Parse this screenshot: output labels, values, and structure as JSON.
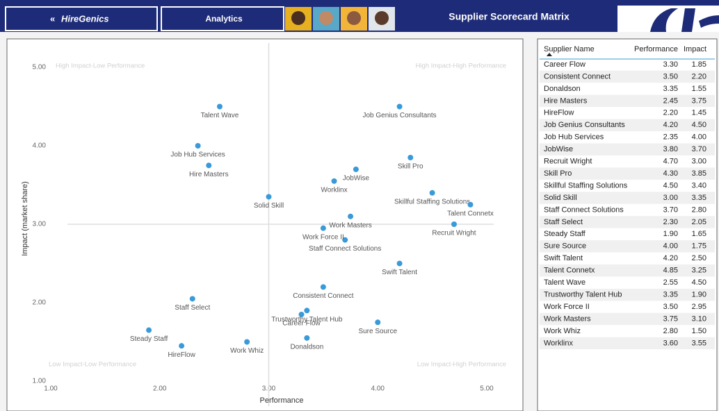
{
  "header": {
    "logo": "HireGenics",
    "nav": "Analytics",
    "title": "Supplier Scorecard Matrix"
  },
  "chart_data": {
    "type": "scatter",
    "x_label": "Performance",
    "y_label": "Impact (market share)",
    "color": "#3a9ad9",
    "xlim": [
      1,
      5
    ],
    "ylim": [
      1,
      5
    ],
    "xticks": [
      {
        "value": 1,
        "label": "1.00"
      },
      {
        "value": 2,
        "label": "2.00"
      },
      {
        "value": 3,
        "label": "3.00"
      },
      {
        "value": 4,
        "label": "4.00"
      },
      {
        "value": 5,
        "label": "5.00"
      }
    ],
    "yticks": [
      {
        "value": 1,
        "label": "1.00"
      },
      {
        "value": 2,
        "label": "2.00"
      },
      {
        "value": 3,
        "label": "3.00"
      },
      {
        "value": 4,
        "label": "4.00"
      },
      {
        "value": 5,
        "label": "5.00"
      }
    ],
    "reference_lines": {
      "x": 3,
      "y": 3
    },
    "annotations": [
      "High Impact-Low Performance",
      "High Impact-High Performance",
      "Low Impact-Low Performance",
      "Low Impact-High Performance"
    ],
    "categories": [
      "Career Flow",
      "Consistent Connect",
      "Donaldson",
      "Hire Masters",
      "HireFlow",
      "Job Genius Consultants",
      "Job Hub Services",
      "JobWise",
      "Recruit Wright",
      "Skill Pro",
      "Skillful Staffing Solutions",
      "Solid Skill",
      "Staff Connect Solutions",
      "Staff Select",
      "Steady Staff",
      "Sure Source",
      "Swift Talent",
      "Talent Connetx",
      "Talent Wave",
      "Trustworthy Talent Hub",
      "Work Force II",
      "Work Masters",
      "Work Whiz",
      "Worklinx"
    ],
    "x": [
      3.3,
      3.5,
      3.35,
      2.45,
      2.2,
      4.2,
      2.35,
      3.8,
      4.7,
      4.3,
      4.5,
      3.0,
      3.7,
      2.3,
      1.9,
      4.0,
      4.2,
      4.85,
      2.55,
      3.35,
      3.5,
      3.75,
      2.8,
      3.6
    ],
    "values": [
      1.85,
      2.2,
      1.55,
      3.75,
      1.45,
      4.5,
      4.0,
      3.7,
      3.0,
      3.85,
      3.4,
      3.35,
      2.8,
      2.05,
      1.65,
      1.75,
      2.5,
      3.25,
      4.5,
      1.9,
      2.95,
      3.1,
      1.5,
      3.55
    ]
  },
  "table": {
    "columns": [
      "Supplier Name",
      "Performance",
      "Impact"
    ],
    "rows": [
      [
        "Career Flow",
        "3.30",
        "1.85"
      ],
      [
        "Consistent Connect",
        "3.50",
        "2.20"
      ],
      [
        "Donaldson",
        "3.35",
        "1.55"
      ],
      [
        "Hire Masters",
        "2.45",
        "3.75"
      ],
      [
        "HireFlow",
        "2.20",
        "1.45"
      ],
      [
        "Job Genius Consultants",
        "4.20",
        "4.50"
      ],
      [
        "Job Hub Services",
        "2.35",
        "4.00"
      ],
      [
        "JobWise",
        "3.80",
        "3.70"
      ],
      [
        "Recruit Wright",
        "4.70",
        "3.00"
      ],
      [
        "Skill Pro",
        "4.30",
        "3.85"
      ],
      [
        "Skillful Staffing Solutions",
        "4.50",
        "3.40"
      ],
      [
        "Solid Skill",
        "3.00",
        "3.35"
      ],
      [
        "Staff Connect Solutions",
        "3.70",
        "2.80"
      ],
      [
        "Staff Select",
        "2.30",
        "2.05"
      ],
      [
        "Steady Staff",
        "1.90",
        "1.65"
      ],
      [
        "Sure Source",
        "4.00",
        "1.75"
      ],
      [
        "Swift Talent",
        "4.20",
        "2.50"
      ],
      [
        "Talent Connetx",
        "4.85",
        "3.25"
      ],
      [
        "Talent Wave",
        "2.55",
        "4.50"
      ],
      [
        "Trustworthy Talent Hub",
        "3.35",
        "1.90"
      ],
      [
        "Work Force II",
        "3.50",
        "2.95"
      ],
      [
        "Work Masters",
        "3.75",
        "3.10"
      ],
      [
        "Work Whiz",
        "2.80",
        "1.50"
      ],
      [
        "Worklinx",
        "3.60",
        "3.55"
      ]
    ]
  }
}
